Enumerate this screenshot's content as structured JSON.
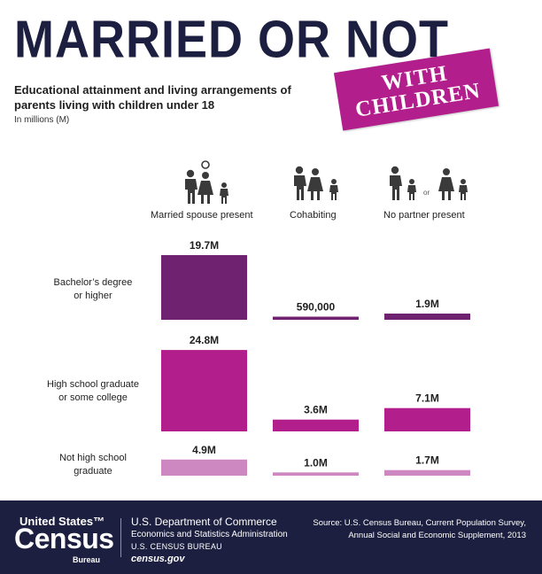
{
  "title": "MARRIED OR NOT",
  "stamp": {
    "line1": "WITH",
    "line2": "CHILDREN"
  },
  "subtitle": "Educational attainment and living arrangements of parents living with children under 18",
  "units": "In millions (M)",
  "icons": {
    "married": "married-family-icon",
    "cohabiting": "cohabiting-family-icon",
    "single": "single-parent-icon"
  },
  "or_text": "or",
  "colors": {
    "bachelor": "#6f226f",
    "highschool": "#b21e8c",
    "nothighschool": "#cd88c1",
    "title": "#1c1f3f",
    "footer": "#1c1f3f"
  },
  "chart_data": {
    "type": "bar",
    "unit": "millions",
    "categories": [
      "Married spouse present",
      "Cohabiting",
      "No partner present"
    ],
    "series": [
      {
        "name": "Bachelor's degree or higher",
        "values": [
          19.7,
          0.59,
          1.9
        ],
        "labels": [
          "19.7M",
          "590,000",
          "1.9M"
        ]
      },
      {
        "name": "High school graduate or some college",
        "values": [
          24.8,
          3.6,
          7.1
        ],
        "labels": [
          "24.8M",
          "3.6M",
          "7.1M"
        ]
      },
      {
        "name": "Not high school graduate",
        "values": [
          4.9,
          1.0,
          1.7
        ],
        "labels": [
          "4.9M",
          "1.0M",
          "1.7M"
        ]
      }
    ]
  },
  "row_labels": {
    "bachelor": [
      "Bachelor’s degree",
      "or higher"
    ],
    "highschool": [
      "High school graduate",
      "or some college"
    ],
    "nothighschool": [
      "Not high school",
      "graduate"
    ]
  },
  "footer": {
    "logo_top": "United States™",
    "logo_main": "Census",
    "logo_sub": "Bureau",
    "dept": "U.S. Department of Commerce",
    "admin": "Economics and Statistics Administration",
    "bureau": "U.S. CENSUS BUREAU",
    "site": "census.gov",
    "source_line1": "Source: U.S. Census Bureau, Current Population Survey,",
    "source_line2": "Annual Social and Economic Supplement, 2013"
  }
}
